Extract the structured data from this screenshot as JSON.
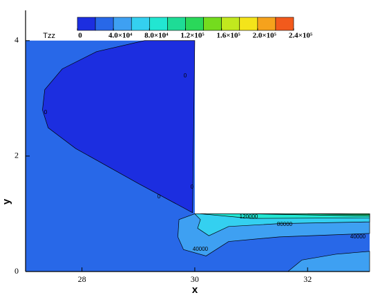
{
  "chart_data": {
    "type": "contour",
    "xlabel": "x",
    "ylabel": "y",
    "xlim": [
      27,
      33.1
    ],
    "ylim": [
      0,
      4.5
    ],
    "xticks": [
      28,
      30,
      32
    ],
    "yticks": [
      0,
      2,
      4
    ],
    "colorbar_title": "Tzz",
    "levels": [
      0,
      20000,
      40000,
      60000,
      80000,
      100000,
      120000,
      140000,
      160000,
      180000,
      200000,
      220000,
      240000
    ],
    "colors": [
      "#1c2ee0",
      "#2868e8",
      "#3ea0f2",
      "#34d0f0",
      "#22e6d2",
      "#1edc96",
      "#2ad85a",
      "#74dc1e",
      "#c2e81e",
      "#f4e41a",
      "#f6a21c",
      "#f25a1c"
    ],
    "colorbar_ticks": [
      0,
      {
        "value": 40000,
        "label": "4.0×10⁴"
      },
      {
        "value": 80000,
        "label": "8.0×10⁴"
      },
      {
        "value": 120000,
        "label": "1.2×10⁵"
      },
      {
        "value": 160000,
        "label": "1.6×10⁵"
      },
      {
        "value": 200000,
        "label": "2.0×10⁵"
      },
      {
        "value": 240000,
        "label": "2.4×10⁵"
      }
    ],
    "regions": [
      {
        "level": 20000,
        "points": [
          [
            27,
            0
          ],
          [
            33.1,
            0
          ],
          [
            33.1,
            1
          ],
          [
            30,
            1
          ],
          [
            30,
            4
          ],
          [
            27,
            4
          ]
        ]
      },
      {
        "level": 0,
        "points": [
          [
            29.11,
            4
          ],
          [
            28.26,
            3.81
          ],
          [
            27.65,
            3.51
          ],
          [
            27.34,
            3.15
          ],
          [
            27.3,
            2.8
          ],
          [
            27.4,
            2.49
          ],
          [
            27.89,
            2.13
          ],
          [
            28.99,
            1.53
          ],
          [
            29.96,
            1.02
          ],
          [
            30,
            4
          ]
        ]
      },
      {
        "level": 40000,
        "points": [
          [
            30,
            1
          ],
          [
            29.72,
            0.9
          ],
          [
            29.7,
            0.6
          ],
          [
            29.8,
            0.38
          ],
          [
            30.2,
            0.27
          ],
          [
            30.6,
            0.52
          ],
          [
            31.5,
            0.6
          ],
          [
            33.1,
            0.66
          ],
          [
            33.1,
            1
          ]
        ]
      },
      {
        "level": 40000,
        "points": [
          [
            31.65,
            0
          ],
          [
            31.9,
            0.2
          ],
          [
            32.5,
            0.3
          ],
          [
            33.1,
            0.35
          ],
          [
            33.1,
            0
          ]
        ]
      },
      {
        "level": 60000,
        "points": [
          [
            30,
            1
          ],
          [
            30.1,
            0.9
          ],
          [
            30.05,
            0.75
          ],
          [
            30.25,
            0.62
          ],
          [
            30.6,
            0.78
          ],
          [
            31.5,
            0.83
          ],
          [
            33.1,
            0.86
          ],
          [
            33.1,
            1
          ]
        ]
      },
      {
        "level": 80000,
        "points": [
          [
            30.1,
            1
          ],
          [
            31,
            0.92
          ],
          [
            33.1,
            0.93
          ],
          [
            33.1,
            1
          ]
        ]
      },
      {
        "level": 100000,
        "points": [
          [
            31,
            1
          ],
          [
            33.1,
            0.96
          ],
          [
            33.1,
            1
          ]
        ]
      },
      {
        "level": 120000,
        "points": [
          [
            32,
            1
          ],
          [
            33.1,
            0.985
          ],
          [
            33.1,
            1
          ]
        ]
      }
    ],
    "contour_labels": [
      0,
      0,
      0,
      0,
      120000,
      80000,
      40000,
      40000
    ]
  }
}
